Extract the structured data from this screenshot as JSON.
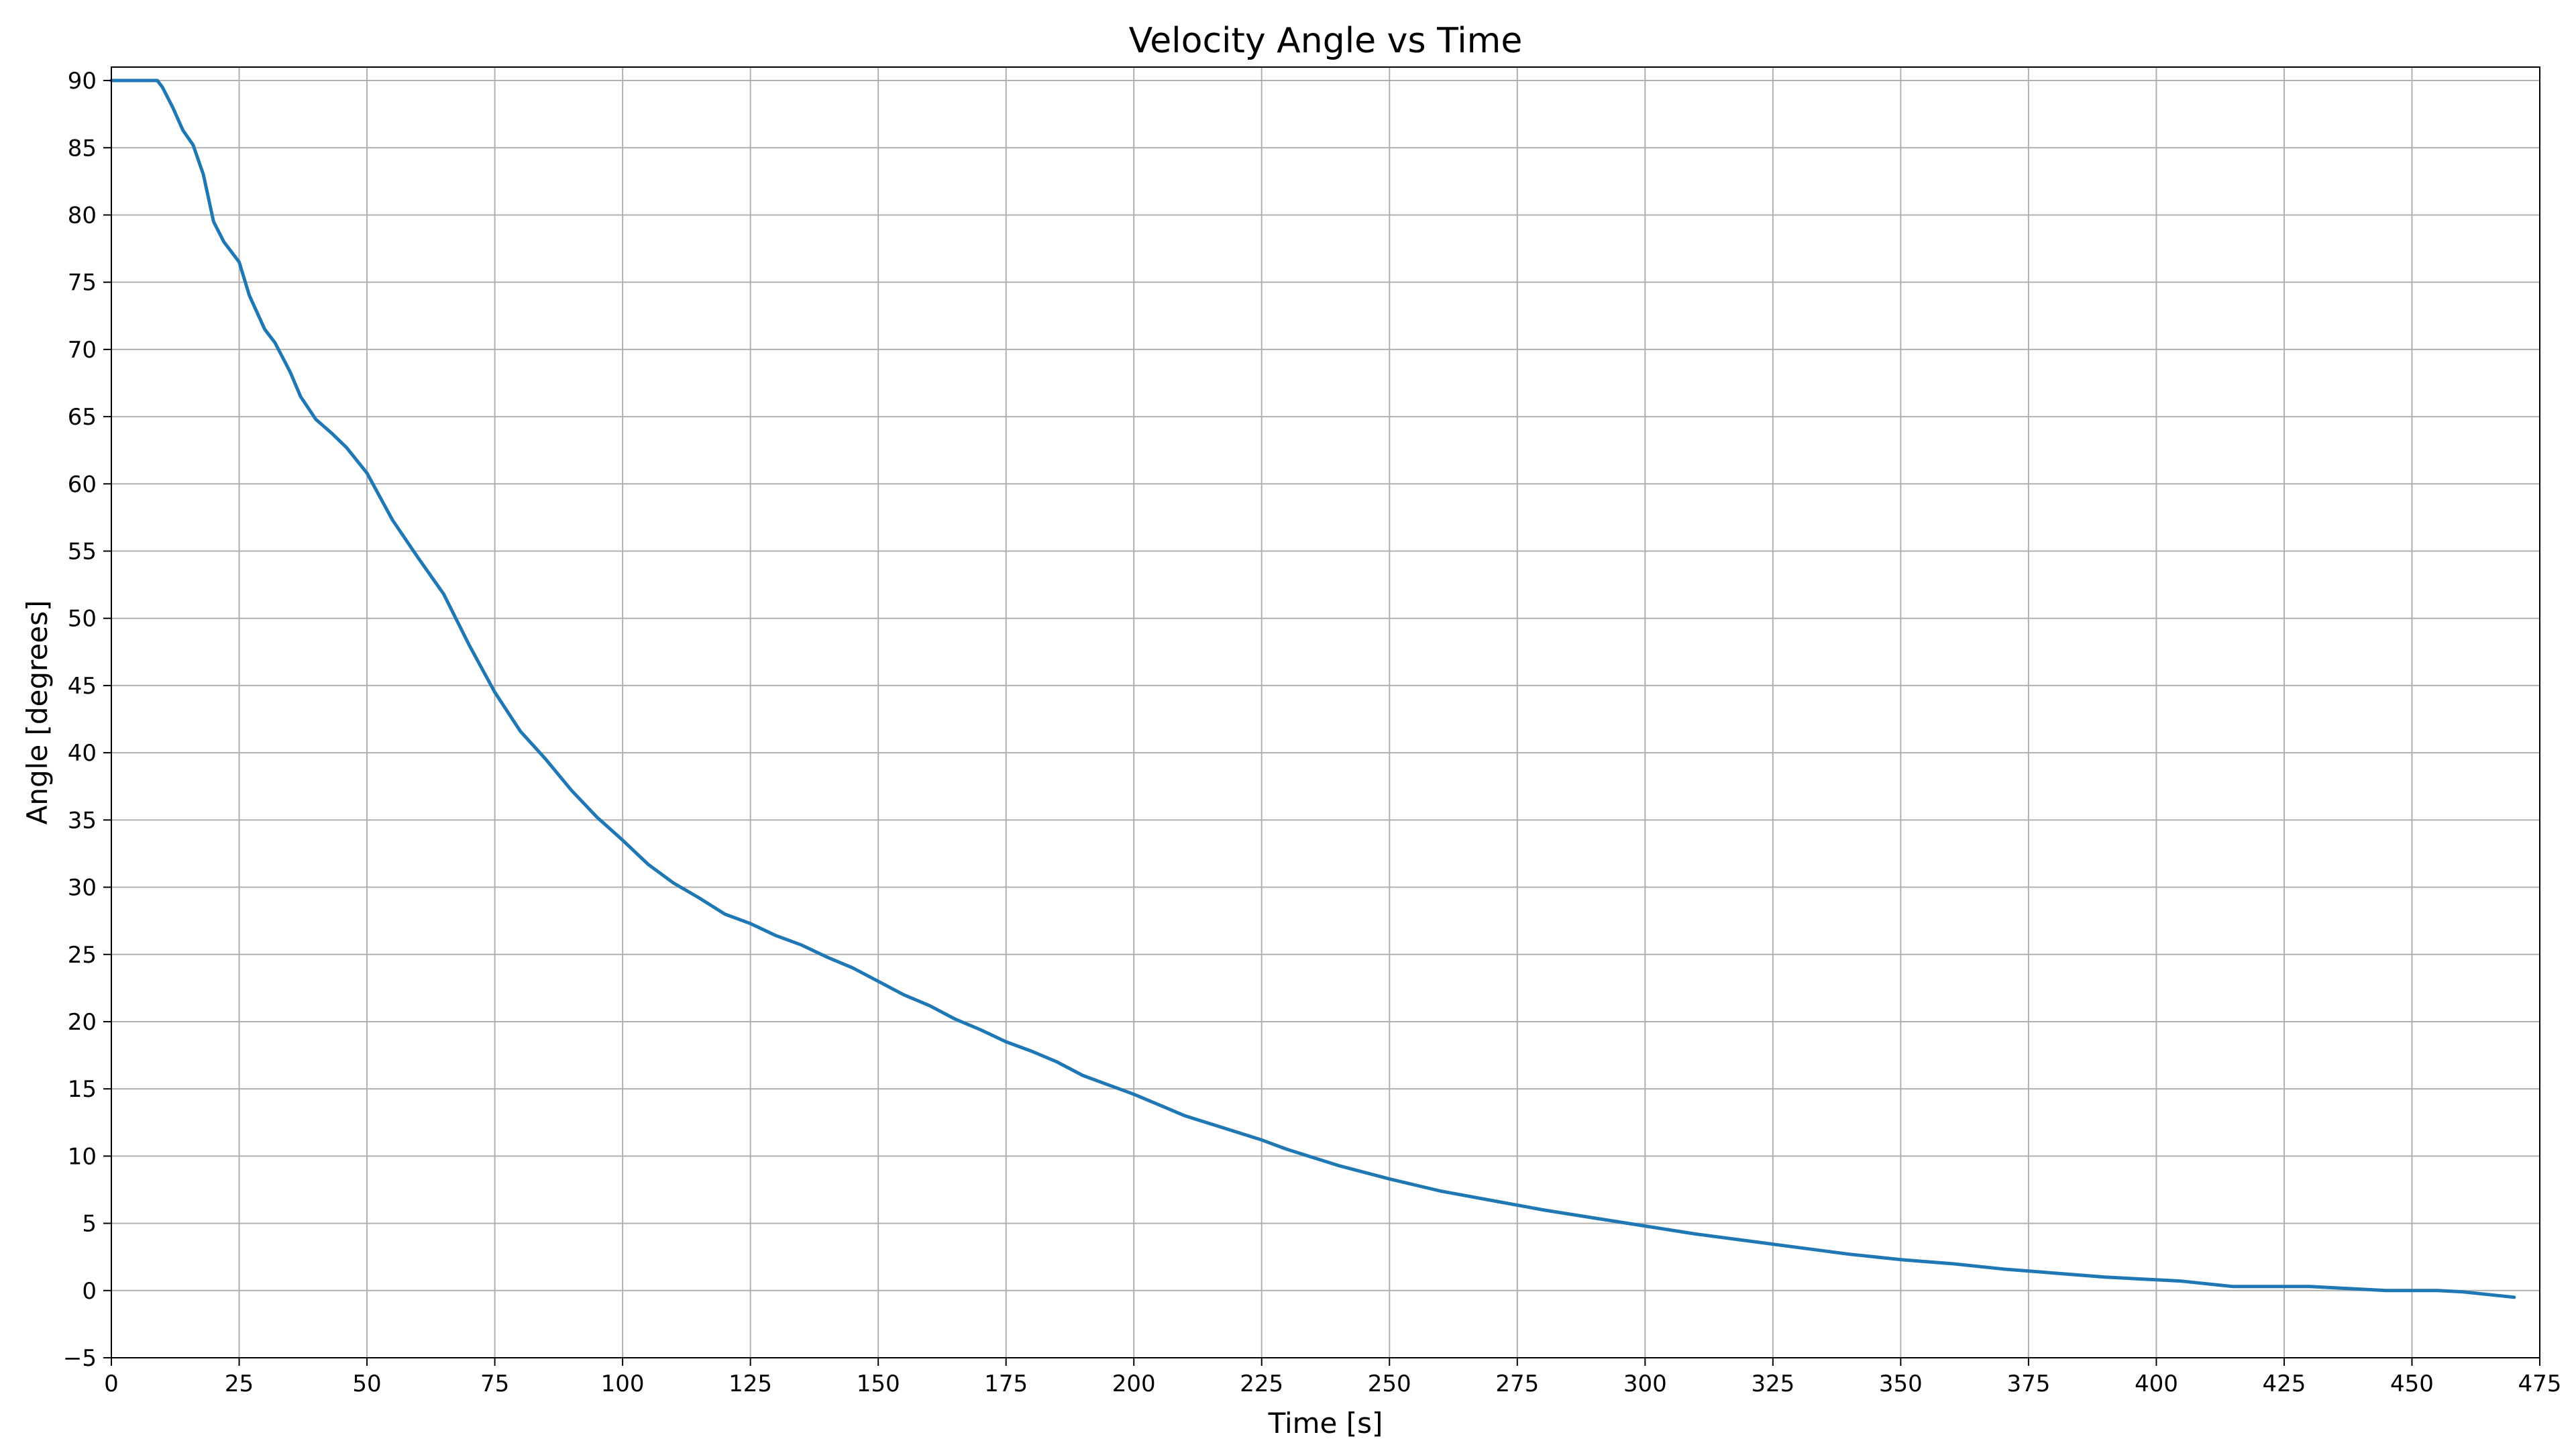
{
  "chart_data": {
    "type": "line",
    "title": "Velocity Angle vs Time",
    "xlabel": "Time [s]",
    "ylabel": "Angle [degrees]",
    "xlim": [
      0,
      475
    ],
    "ylim": [
      -5,
      91
    ],
    "x_ticks": [
      0,
      25,
      50,
      75,
      100,
      125,
      150,
      175,
      200,
      225,
      250,
      275,
      300,
      325,
      350,
      375,
      400,
      425,
      450,
      475
    ],
    "y_ticks": [
      -5,
      0,
      5,
      10,
      15,
      20,
      25,
      30,
      35,
      40,
      45,
      50,
      55,
      60,
      65,
      70,
      75,
      80,
      85,
      90
    ],
    "x_tick_labels": [
      "0",
      "25",
      "50",
      "75",
      "100",
      "125",
      "150",
      "175",
      "200",
      "225",
      "250",
      "275",
      "300",
      "325",
      "350",
      "375",
      "400",
      "425",
      "450",
      "475"
    ],
    "y_tick_labels": [
      "−5",
      "0",
      "5",
      "10",
      "15",
      "20",
      "25",
      "30",
      "35",
      "40",
      "45",
      "50",
      "55",
      "60",
      "65",
      "70",
      "75",
      "80",
      "85",
      "90"
    ],
    "grid": true,
    "series": [
      {
        "color": "#1f77b4",
        "x": [
          0,
          5,
          9,
          10,
          12,
          14,
          16,
          18,
          20,
          22,
          25,
          27,
          30,
          32,
          35,
          37,
          40,
          43,
          46,
          50,
          55,
          60,
          65,
          70,
          75,
          80,
          85,
          90,
          95,
          100,
          105,
          110,
          115,
          120,
          125,
          130,
          135,
          140,
          145,
          150,
          155,
          160,
          165,
          170,
          175,
          180,
          185,
          190,
          195,
          200,
          205,
          210,
          215,
          220,
          225,
          230,
          235,
          240,
          245,
          250,
          260,
          270,
          280,
          290,
          300,
          310,
          320,
          330,
          340,
          350,
          360,
          370,
          380,
          390,
          400,
          405,
          410,
          415,
          420,
          430,
          435,
          440,
          445,
          450,
          455,
          460,
          465,
          470
        ],
        "y": [
          90,
          90,
          90,
          89.5,
          88,
          86.3,
          85.2,
          83,
          79.5,
          78,
          76.5,
          74,
          71.5,
          70.5,
          68.3,
          66.5,
          64.8,
          63.8,
          62.7,
          60.8,
          57.3,
          54.5,
          51.8,
          48,
          44.5,
          41.6,
          39.5,
          37.2,
          35.2,
          33.5,
          31.7,
          30.3,
          29.2,
          28,
          27.3,
          26.4,
          25.7,
          24.8,
          24,
          23,
          22,
          21.2,
          20.2,
          19.4,
          18.5,
          17.8,
          17,
          16,
          15.3,
          14.6,
          13.8,
          13,
          12.4,
          11.8,
          11.2,
          10.5,
          9.9,
          9.3,
          8.8,
          8.3,
          7.4,
          6.7,
          6,
          5.4,
          4.8,
          4.2,
          3.7,
          3.2,
          2.7,
          2.3,
          2,
          1.6,
          1.3,
          1,
          0.8,
          0.7,
          0.5,
          0.3,
          0.3,
          0.3,
          0.2,
          0.1,
          0,
          0,
          0,
          -0.1,
          -0.3,
          -0.5
        ]
      }
    ]
  }
}
